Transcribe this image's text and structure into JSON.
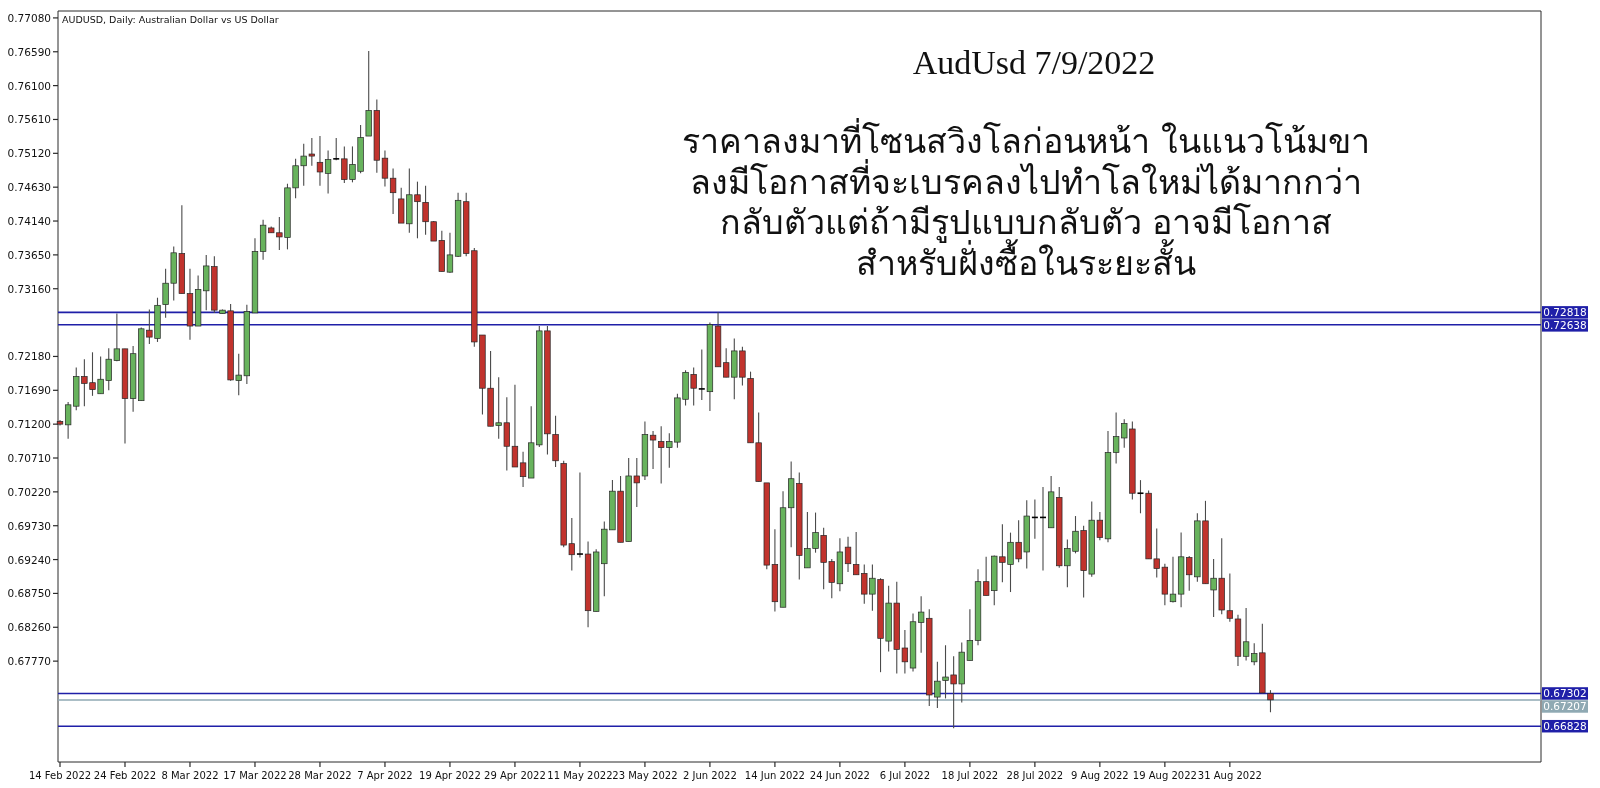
{
  "chart_data": {
    "type": "candlestick",
    "title": "AudUsd 7/9/2022",
    "subtitle": "AUDUSD, Daily:  Australian Dollar vs US Dollar",
    "annotations": [
      "ราคาลงมาที่โซนสวิงโลก่อนหน้า ในแนวโน้มขา\nลงมีโอกาสที่จะเบรคลงไปทำโลใหม่ได้มากกว่า\nกลับตัวแต่ถ้ามีรูปแบบกลับตัว อาจมีโอกาส\nสำหรับฝั่งซื้อในระยะสั้น"
    ],
    "categories": [
      "14 Feb 2022",
      null,
      null,
      null,
      null,
      null,
      null,
      null,
      "24 Feb 2022",
      null,
      null,
      null,
      null,
      null,
      null,
      null,
      "8 Mar 2022",
      null,
      null,
      null,
      null,
      null,
      null,
      null,
      "17 Mar 2022",
      null,
      null,
      null,
      null,
      null,
      null,
      null,
      "28 Mar 2022",
      null,
      null,
      null,
      null,
      null,
      null,
      null,
      "7 Apr 2022",
      null,
      null,
      null,
      null,
      null,
      null,
      null,
      "19 Apr 2022",
      null,
      null,
      null,
      null,
      null,
      null,
      null,
      "29 Apr 2022",
      null,
      null,
      null,
      null,
      null,
      null,
      null,
      "11 May 2022",
      null,
      null,
      null,
      null,
      null,
      null,
      null,
      "23 May 2022",
      null,
      null,
      null,
      null,
      null,
      null,
      null,
      "2 Jun 2022",
      null,
      null,
      null,
      null,
      null,
      null,
      null,
      "14 Jun 2022",
      null,
      null,
      null,
      null,
      null,
      null,
      null,
      "24 Jun 2022",
      null,
      null,
      null,
      null,
      null,
      null,
      null,
      "6 Jul 2022",
      null,
      null,
      null,
      null,
      null,
      null,
      null,
      "18 Jul 2022",
      null,
      null,
      null,
      null,
      null,
      null,
      null,
      "28 Jul 2022",
      null,
      null,
      null,
      null,
      null,
      null,
      null,
      "9 Aug 2022",
      null,
      null,
      null,
      null,
      null,
      null,
      null,
      "19 Aug 2022",
      null,
      null,
      null,
      null,
      null,
      null,
      null,
      "31 Aug 2022",
      null,
      null,
      null,
      null,
      null
    ],
    "ohlc": [
      [
        0.7124,
        0.7126,
        0.7118,
        0.712
      ],
      [
        0.7119,
        0.7152,
        0.7099,
        0.7148
      ],
      [
        0.7146,
        0.7202,
        0.714,
        0.7189
      ],
      [
        0.7189,
        0.7214,
        0.7146,
        0.7179
      ],
      [
        0.718,
        0.7224,
        0.7161,
        0.717
      ],
      [
        0.7164,
        0.7218,
        0.7164,
        0.7185
      ],
      [
        0.7183,
        0.723,
        0.7169,
        0.7214
      ],
      [
        0.7212,
        0.728,
        0.7211,
        0.7229
      ],
      [
        0.7229,
        0.7229,
        0.7092,
        0.7157
      ],
      [
        0.7157,
        0.7233,
        0.7138,
        0.7222
      ],
      [
        0.7154,
        0.726,
        0.7154,
        0.7258
      ],
      [
        0.7256,
        0.7286,
        0.7236,
        0.7246
      ],
      [
        0.7244,
        0.7303,
        0.7239,
        0.7292
      ],
      [
        0.7293,
        0.7345,
        0.7274,
        0.7324
      ],
      [
        0.7324,
        0.7377,
        0.7299,
        0.7368
      ],
      [
        0.7367,
        0.7437,
        0.7309,
        0.7309
      ],
      [
        0.7309,
        0.7345,
        0.7242,
        0.7262
      ],
      [
        0.7262,
        0.7335,
        0.7262,
        0.7315
      ],
      [
        0.7313,
        0.7365,
        0.7285,
        0.7349
      ],
      [
        0.7348,
        0.7363,
        0.7281,
        0.7285
      ],
      [
        0.728,
        0.7286,
        0.728,
        0.7285
      ],
      [
        0.7284,
        0.7294,
        0.7183,
        0.7184
      ],
      [
        0.7183,
        0.7222,
        0.7162,
        0.7191
      ],
      [
        0.719,
        0.7293,
        0.7178,
        0.7283
      ],
      [
        0.7281,
        0.7389,
        0.7281,
        0.737
      ],
      [
        0.737,
        0.7416,
        0.7358,
        0.7408
      ],
      [
        0.7404,
        0.7406,
        0.7397,
        0.7397
      ],
      [
        0.7397,
        0.742,
        0.7372,
        0.7391
      ],
      [
        0.739,
        0.7468,
        0.7373,
        0.7462
      ],
      [
        0.7462,
        0.7504,
        0.7447,
        0.7494
      ],
      [
        0.7494,
        0.7526,
        0.7465,
        0.7508
      ],
      [
        0.7511,
        0.7534,
        0.7494,
        0.7508
      ],
      [
        0.7499,
        0.7537,
        0.7465,
        0.7485
      ],
      [
        0.7483,
        0.7516,
        0.7454,
        0.7503
      ],
      [
        0.7504,
        0.7534,
        0.7502,
        0.7504
      ],
      [
        0.7504,
        0.7522,
        0.7469,
        0.7474
      ],
      [
        0.7474,
        0.7522,
        0.747,
        0.7496
      ],
      [
        0.7486,
        0.7553,
        0.7483,
        0.7535
      ],
      [
        0.7537,
        0.766,
        0.7537,
        0.7574
      ],
      [
        0.7574,
        0.759,
        0.7484,
        0.7502
      ],
      [
        0.7505,
        0.7516,
        0.7464,
        0.7476
      ],
      [
        0.7476,
        0.749,
        0.7424,
        0.7455
      ],
      [
        0.7446,
        0.7462,
        0.7411,
        0.7411
      ],
      [
        0.741,
        0.749,
        0.7397,
        0.7452
      ],
      [
        0.7452,
        0.7471,
        0.7389,
        0.7442
      ],
      [
        0.7441,
        0.7465,
        0.7394,
        0.7413
      ],
      [
        0.7413,
        0.7414,
        0.7385,
        0.7385
      ],
      [
        0.7386,
        0.74,
        0.7341,
        0.7341
      ],
      [
        0.734,
        0.7397,
        0.7339,
        0.7365
      ],
      [
        0.7363,
        0.7455,
        0.7362,
        0.7444
      ],
      [
        0.7442,
        0.7455,
        0.7363,
        0.7367
      ],
      [
        0.7371,
        0.7375,
        0.7232,
        0.7239
      ],
      [
        0.7249,
        0.7249,
        0.7134,
        0.7172
      ],
      [
        0.7172,
        0.7226,
        0.7117,
        0.7117
      ],
      [
        0.7118,
        0.7188,
        0.7099,
        0.7122
      ],
      [
        0.7122,
        0.7159,
        0.7053,
        0.7088
      ],
      [
        0.7088,
        0.7177,
        0.7058,
        0.7058
      ],
      [
        0.7064,
        0.708,
        0.7029,
        0.7044
      ],
      [
        0.7042,
        0.7146,
        0.7042,
        0.7093
      ],
      [
        0.709,
        0.7262,
        0.7087,
        0.7255
      ],
      [
        0.7255,
        0.7262,
        0.7076,
        0.7106
      ],
      [
        0.7105,
        0.7132,
        0.7058,
        0.7067
      ],
      [
        0.7063,
        0.7067,
        0.6942,
        0.6945
      ],
      [
        0.6947,
        0.6984,
        0.6908,
        0.6931
      ],
      [
        0.6932,
        0.705,
        0.6927,
        0.6932
      ],
      [
        0.6932,
        0.695,
        0.6826,
        0.685
      ],
      [
        0.6849,
        0.6939,
        0.6849,
        0.6935
      ],
      [
        0.6918,
        0.6979,
        0.6871,
        0.6968
      ],
      [
        0.6967,
        0.7039,
        0.6967,
        0.7023
      ],
      [
        0.7023,
        0.7045,
        0.6949,
        0.6949
      ],
      [
        0.695,
        0.7071,
        0.695,
        0.7045
      ],
      [
        0.7045,
        0.7071,
        0.7,
        0.7035
      ],
      [
        0.7045,
        0.7124,
        0.7039,
        0.7105
      ],
      [
        0.7104,
        0.711,
        0.7055,
        0.7097
      ],
      [
        0.7095,
        0.7117,
        0.7034,
        0.7086
      ],
      [
        0.7086,
        0.7107,
        0.7057,
        0.7095
      ],
      [
        0.7094,
        0.7164,
        0.7086,
        0.7158
      ],
      [
        0.7156,
        0.7198,
        0.7147,
        0.7195
      ],
      [
        0.7192,
        0.7202,
        0.7147,
        0.7172
      ],
      [
        0.7171,
        0.7228,
        0.7155,
        0.7171
      ],
      [
        0.7167,
        0.7267,
        0.7139,
        0.7264
      ],
      [
        0.7262,
        0.7282,
        0.7203,
        0.7203
      ],
      [
        0.7209,
        0.723,
        0.7188,
        0.7188
      ],
      [
        0.7188,
        0.7244,
        0.7156,
        0.7226
      ],
      [
        0.7226,
        0.7232,
        0.7176,
        0.7188
      ],
      [
        0.7186,
        0.7196,
        0.7093,
        0.7093
      ],
      [
        0.7093,
        0.7137,
        0.7037,
        0.7037
      ],
      [
        0.7035,
        0.7035,
        0.691,
        0.6916
      ],
      [
        0.6917,
        0.6968,
        0.6849,
        0.6863
      ],
      [
        0.6855,
        0.7023,
        0.6855,
        0.6999
      ],
      [
        0.6999,
        0.7066,
        0.6942,
        0.7041
      ],
      [
        0.7034,
        0.705,
        0.6895,
        0.693
      ],
      [
        0.6912,
        0.6993,
        0.6912,
        0.694
      ],
      [
        0.694,
        0.6992,
        0.6934,
        0.6963
      ],
      [
        0.6959,
        0.697,
        0.6881,
        0.692
      ],
      [
        0.6921,
        0.6925,
        0.6868,
        0.6891
      ],
      [
        0.6889,
        0.6955,
        0.6878,
        0.6935
      ],
      [
        0.6942,
        0.6957,
        0.6906,
        0.6918
      ],
      [
        0.6917,
        0.6964,
        0.6902,
        0.6902
      ],
      [
        0.6904,
        0.6917,
        0.686,
        0.6874
      ],
      [
        0.6874,
        0.6917,
        0.685,
        0.6897
      ],
      [
        0.6895,
        0.6897,
        0.6761,
        0.681
      ],
      [
        0.6806,
        0.6886,
        0.6791,
        0.6861
      ],
      [
        0.6861,
        0.6892,
        0.6759,
        0.6794
      ],
      [
        0.6796,
        0.6822,
        0.6759,
        0.6776
      ],
      [
        0.6767,
        0.6846,
        0.6762,
        0.6834
      ],
      [
        0.6833,
        0.6871,
        0.6789,
        0.6848
      ],
      [
        0.6839,
        0.6852,
        0.6712,
        0.6728
      ],
      [
        0.6725,
        0.6776,
        0.6709,
        0.6748
      ],
      [
        0.6749,
        0.68,
        0.6723,
        0.6754
      ],
      [
        0.6757,
        0.6784,
        0.668,
        0.6744
      ],
      [
        0.6744,
        0.6804,
        0.6717,
        0.679
      ],
      [
        0.6778,
        0.6852,
        0.6778,
        0.6807
      ],
      [
        0.6807,
        0.691,
        0.68,
        0.6892
      ],
      [
        0.6892,
        0.6928,
        0.6872,
        0.6872
      ],
      [
        0.6879,
        0.693,
        0.6858,
        0.6929
      ],
      [
        0.6928,
        0.6975,
        0.6891,
        0.692
      ],
      [
        0.6917,
        0.6963,
        0.6877,
        0.6949
      ],
      [
        0.6949,
        0.6981,
        0.692,
        0.6925
      ],
      [
        0.6935,
        0.701,
        0.6911,
        0.6987
      ],
      [
        0.6985,
        0.7011,
        0.6954,
        0.6985
      ],
      [
        0.6985,
        0.7029,
        0.6908,
        0.6985
      ],
      [
        0.697,
        0.7045,
        0.697,
        0.7022
      ],
      [
        0.7014,
        0.7029,
        0.6912,
        0.6915
      ],
      [
        0.6915,
        0.6953,
        0.6884,
        0.694
      ],
      [
        0.6936,
        0.6987,
        0.6933,
        0.6965
      ],
      [
        0.6966,
        0.6973,
        0.6869,
        0.6908
      ],
      [
        0.6903,
        0.7008,
        0.6899,
        0.6981
      ],
      [
        0.6981,
        0.6993,
        0.6952,
        0.6956
      ],
      [
        0.6954,
        0.711,
        0.6949,
        0.7079
      ],
      [
        0.7079,
        0.7137,
        0.7063,
        0.7102
      ],
      [
        0.71,
        0.7127,
        0.7086,
        0.7121
      ],
      [
        0.7113,
        0.7124,
        0.7011,
        0.702
      ],
      [
        0.702,
        0.7039,
        0.6991,
        0.702
      ],
      [
        0.702,
        0.7024,
        0.6925,
        0.6925
      ],
      [
        0.6925,
        0.6969,
        0.6898,
        0.6911
      ],
      [
        0.6913,
        0.6918,
        0.6858,
        0.6874
      ],
      [
        0.6863,
        0.6928,
        0.6862,
        0.6874
      ],
      [
        0.6874,
        0.6963,
        0.6855,
        0.6928
      ],
      [
        0.6927,
        0.6929,
        0.6879,
        0.6902
      ],
      [
        0.6899,
        0.6991,
        0.6892,
        0.698
      ],
      [
        0.698,
        0.7009,
        0.6889,
        0.6889
      ],
      [
        0.688,
        0.6925,
        0.6841,
        0.6897
      ],
      [
        0.6897,
        0.6955,
        0.6845,
        0.6851
      ],
      [
        0.685,
        0.6904,
        0.6834,
        0.6839
      ],
      [
        0.6838,
        0.6844,
        0.677,
        0.6784
      ],
      [
        0.6784,
        0.6854,
        0.6778,
        0.6805
      ],
      [
        0.6776,
        0.6803,
        0.6771,
        0.6788
      ],
      [
        0.6789,
        0.6831,
        0.673,
        0.6731
      ],
      [
        0.673,
        0.6735,
        0.6703,
        0.6721
      ]
    ],
    "colors": [
      "#c1332d",
      "#68b35d",
      "#68b35d",
      "#c1332d",
      "#c1332d",
      "#68b35d",
      "#68b35d",
      "#68b35d",
      "#c1332d",
      "#68b35d",
      "#68b35d",
      "#c1332d",
      "#68b35d",
      "#68b35d",
      "#68b35d",
      "#c1332d",
      "#c1332d",
      "#68b35d",
      "#68b35d",
      "#c1332d",
      "#68b35d",
      "#c1332d",
      "#68b35d",
      "#68b35d",
      "#68b35d",
      "#68b35d",
      "#c1332d",
      "#c1332d",
      "#68b35d",
      "#68b35d",
      "#68b35d",
      "#c1332d",
      "#c1332d",
      "#68b35d",
      "#000000",
      "#c1332d",
      "#68b35d",
      "#68b35d",
      "#68b35d",
      "#c1332d",
      "#c1332d",
      "#c1332d",
      "#c1332d",
      "#68b35d",
      "#c1332d",
      "#c1332d",
      "#c1332d",
      "#c1332d",
      "#68b35d",
      "#68b35d",
      "#c1332d",
      "#c1332d",
      "#c1332d",
      "#c1332d",
      "#68b35d",
      "#c1332d",
      "#c1332d",
      "#c1332d",
      "#68b35d",
      "#68b35d",
      "#c1332d",
      "#c1332d",
      "#c1332d",
      "#c1332d",
      "#000000",
      "#c1332d",
      "#68b35d",
      "#68b35d",
      "#68b35d",
      "#c1332d",
      "#68b35d",
      "#c1332d",
      "#68b35d",
      "#c1332d",
      "#c1332d",
      "#68b35d",
      "#68b35d",
      "#68b35d",
      "#c1332d",
      "#000000",
      "#68b35d",
      "#c1332d",
      "#c1332d",
      "#68b35d",
      "#c1332d",
      "#c1332d",
      "#c1332d",
      "#c1332d",
      "#c1332d",
      "#68b35d",
      "#68b35d",
      "#c1332d",
      "#68b35d",
      "#68b35d",
      "#c1332d",
      "#c1332d",
      "#68b35d",
      "#c1332d",
      "#c1332d",
      "#c1332d",
      "#68b35d",
      "#c1332d",
      "#68b35d",
      "#c1332d",
      "#c1332d",
      "#68b35d",
      "#68b35d",
      "#c1332d",
      "#68b35d",
      "#68b35d",
      "#c1332d",
      "#68b35d",
      "#68b35d",
      "#68b35d",
      "#c1332d",
      "#68b35d",
      "#c1332d",
      "#68b35d",
      "#c1332d",
      "#68b35d",
      "#000000",
      "#000000",
      "#68b35d",
      "#c1332d",
      "#68b35d",
      "#68b35d",
      "#c1332d",
      "#68b35d",
      "#c1332d",
      "#68b35d",
      "#68b35d",
      "#68b35d",
      "#c1332d",
      "#000000",
      "#c1332d",
      "#c1332d",
      "#c1332d",
      "#68b35d",
      "#68b35d",
      "#c1332d",
      "#68b35d",
      "#c1332d",
      "#68b35d",
      "#c1332d",
      "#c1332d",
      "#c1332d",
      "#68b35d",
      "#68b35d",
      "#c1332d",
      "#c1332d"
    ],
    "ylim": [
      0.6631,
      0.7718
    ],
    "yticks": [
      {
        "value": 0.7708,
        "label": "0.77080"
      },
      {
        "value": 0.7659,
        "label": "0.76590"
      },
      {
        "value": 0.761,
        "label": "0.76100"
      },
      {
        "value": 0.7561,
        "label": "0.75610"
      },
      {
        "value": 0.7512,
        "label": "0.75120"
      },
      {
        "value": 0.7463,
        "label": "0.74630"
      },
      {
        "value": 0.7414,
        "label": "0.74140"
      },
      {
        "value": 0.7365,
        "label": "0.73650"
      },
      {
        "value": 0.7316,
        "label": "0.73160"
      },
      {
        "value": 0.7218,
        "label": "0.72180"
      },
      {
        "value": 0.7169,
        "label": "0.71690"
      },
      {
        "value": 0.712,
        "label": "0.71200"
      },
      {
        "value": 0.7071,
        "label": "0.70710"
      },
      {
        "value": 0.7022,
        "label": "0.70220"
      },
      {
        "value": 0.6973,
        "label": "0.69730"
      },
      {
        "value": 0.6924,
        "label": "0.69240"
      },
      {
        "value": 0.6875,
        "label": "0.68750"
      },
      {
        "value": 0.6826,
        "label": "0.68260"
      },
      {
        "value": 0.6777,
        "label": "0.67770"
      }
    ],
    "ref_lines": [
      {
        "axis": "y",
        "value": 0.72818,
        "label": "0.72818",
        "color": "#1f1fa8"
      },
      {
        "axis": "y",
        "value": 0.72638,
        "label": "0.72638",
        "color": "#1f1fa8"
      },
      {
        "axis": "y",
        "value": 0.67302,
        "label": "0.67302",
        "color": "#1f1fa8"
      },
      {
        "axis": "y",
        "value": 0.67207,
        "label": "0.67207",
        "color": "#8fa9b3"
      },
      {
        "axis": "y",
        "value": 0.66828,
        "label": "0.66828",
        "color": "#1f1fa8"
      }
    ]
  }
}
